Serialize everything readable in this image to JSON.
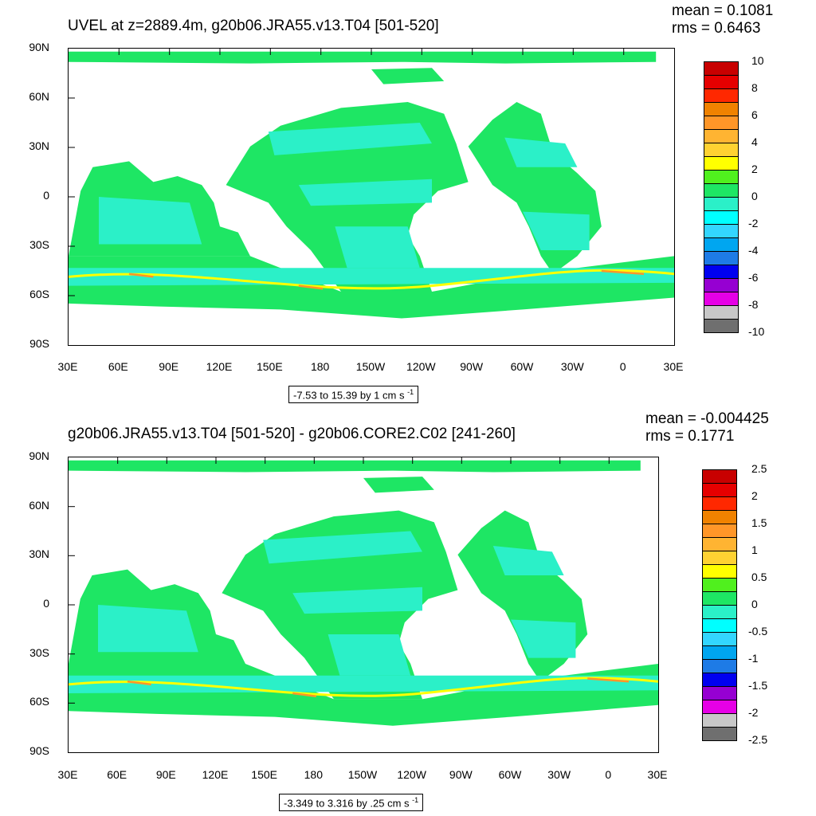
{
  "palette": [
    "#6f6f6f",
    "#c8c8c8",
    "#e600e6",
    "#9600d2",
    "#0000f0",
    "#1e7be6",
    "#00a6f0",
    "#33d6ff",
    "#00ffff",
    "#2bf0c8",
    "#1ee664",
    "#50f01e",
    "#ffff00",
    "#ffd232",
    "#ffb432",
    "#ff9628",
    "#f08200",
    "#ff2800",
    "#e60000",
    "#c80000"
  ],
  "colors": {
    "land": "#ffffff",
    "ocean_main": "#1ee664",
    "ocean_alt": "#2bf0c8",
    "jet": "#ffff00",
    "jet_hot": "#ff9628"
  },
  "top": {
    "title": "UVEL at z=2889.4m, g20b06.JRA55.v13.T04 [501-520]",
    "mean": "mean = 0.1081",
    "rms": "rms = 0.6463",
    "colorbar_labels": [
      "10",
      "8",
      "6",
      "4",
      "2",
      "0",
      "-2",
      "-4",
      "-6",
      "-8",
      "-10"
    ],
    "range_text": "-7.53 to 15.39 by 1 cm s",
    "range_sup": "-1"
  },
  "bottom": {
    "title": "g20b06.JRA55.v13.T04 [501-520] - g20b06.CORE2.C02 [241-260]",
    "mean": "mean = -0.004425",
    "rms": "rms = 0.1771",
    "colorbar_labels": [
      "2.5",
      "2",
      "1.5",
      "1",
      "0.5",
      "0",
      "-0.5",
      "-1",
      "-1.5",
      "-2",
      "-2.5"
    ],
    "range_text": "-3.349 to 3.316 by .25 cm s",
    "range_sup": "-1"
  },
  "axes": {
    "lat_labels": [
      "90N",
      "60N",
      "30N",
      "0",
      "30S",
      "60S",
      "90S"
    ],
    "lon_labels": [
      "30E",
      "60E",
      "90E",
      "120E",
      "150E",
      "180",
      "150W",
      "120W",
      "90W",
      "60W",
      "30W",
      "0",
      "30E"
    ]
  }
}
